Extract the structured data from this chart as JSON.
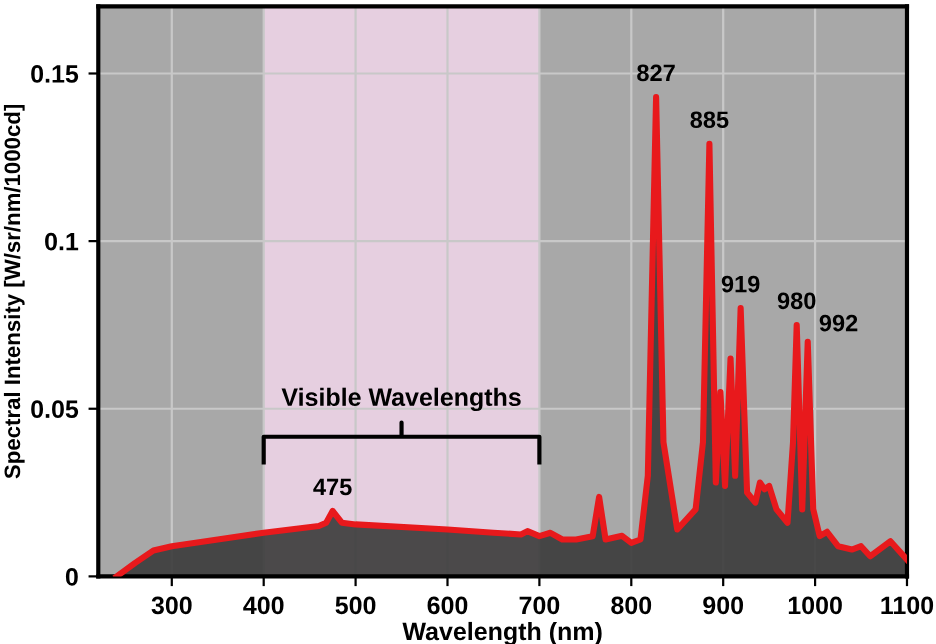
{
  "chart_data": {
    "type": "area",
    "xlabel": "Wavelength (nm)",
    "ylabel": "Spectral Intensity [W/sr/nm/1000cd]",
    "x": [
      240,
      260,
      280,
      300,
      350,
      400,
      460,
      468,
      475,
      485,
      500,
      600,
      650,
      680,
      687,
      700,
      712,
      725,
      740,
      758,
      765,
      772,
      790,
      800,
      810,
      818,
      827,
      835,
      850,
      870,
      878,
      885,
      892,
      897,
      902,
      908,
      913,
      919,
      926,
      935,
      940,
      945,
      950,
      958,
      970,
      976,
      980,
      986,
      992,
      998,
      1005,
      1013,
      1025,
      1040,
      1050,
      1060,
      1082,
      1100
    ],
    "series": [
      {
        "color": "#e8191c",
        "values": [
          0,
          0.004,
          0.0077,
          0.009,
          0.011,
          0.013,
          0.015,
          0.016,
          0.0195,
          0.016,
          0.0155,
          0.014,
          0.013,
          0.0125,
          0.0135,
          0.012,
          0.013,
          0.011,
          0.011,
          0.012,
          0.0237,
          0.011,
          0.0121,
          0.01,
          0.011,
          0.03,
          0.143,
          0.04,
          0.014,
          0.02,
          0.04,
          0.129,
          0.028,
          0.055,
          0.027,
          0.065,
          0.03,
          0.08,
          0.025,
          0.022,
          0.028,
          0.026,
          0.027,
          0.02,
          0.016,
          0.04,
          0.075,
          0.02,
          0.07,
          0.02,
          0.012,
          0.0133,
          0.009,
          0.008,
          0.009,
          0.006,
          0.0105,
          0.005
        ]
      }
    ],
    "xlim": [
      220,
      1100
    ],
    "ylim": [
      0,
      0.17
    ],
    "xticks": [
      300,
      400,
      500,
      600,
      700,
      800,
      900,
      1000,
      1100
    ],
    "yticks": [
      0,
      0.05,
      0.1,
      0.15
    ],
    "grid": true,
    "bands": [
      {
        "axis": "x",
        "from": 400,
        "to": 700,
        "label": "Visible Wavelengths",
        "color": "#e6cfe0"
      }
    ],
    "annotations": [
      {
        "text": "475",
        "x": 475,
        "y": 0.0195
      },
      {
        "text": "827",
        "x": 827,
        "y": 0.143
      },
      {
        "text": "885",
        "x": 885,
        "y": 0.129
      },
      {
        "text": "919",
        "x": 919,
        "y": 0.08
      },
      {
        "text": "980",
        "x": 980,
        "y": 0.075
      },
      {
        "text": "992",
        "x": 992,
        "y": 0.07
      }
    ]
  }
}
